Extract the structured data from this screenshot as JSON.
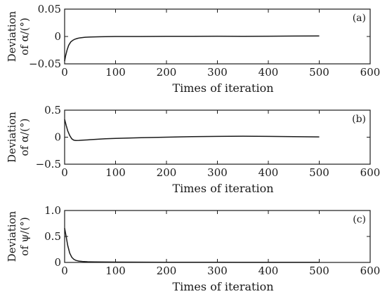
{
  "chart_data": [
    {
      "type": "line",
      "panel_label": "(a)",
      "xlabel": "Times of iteration",
      "ylabel_line1": "Deviation",
      "ylabel_line2": "of α/(°)",
      "xlim": [
        0,
        600
      ],
      "ylim": [
        -0.05,
        0.05
      ],
      "xticks": [
        "0",
        "100",
        "200",
        "300",
        "400",
        "500",
        "600"
      ],
      "yticks": [
        "0.05",
        "0",
        "−0.05"
      ],
      "ytick_values": [
        0.05,
        0,
        -0.05
      ],
      "grid": false,
      "series": [
        {
          "x": [
            0,
            2,
            5,
            8,
            12,
            16,
            20,
            25,
            30,
            40,
            50,
            70,
            100,
            150,
            200,
            250,
            300,
            350,
            400,
            450,
            500
          ],
          "y": [
            -0.045,
            -0.035,
            -0.024,
            -0.016,
            -0.01,
            -0.007,
            -0.005,
            -0.0035,
            -0.0025,
            -0.0015,
            -0.001,
            -0.0005,
            0,
            0,
            0.0003,
            0.0003,
            0.0005,
            0.0003,
            0.0005,
            0.0008,
            0.001
          ]
        }
      ]
    },
    {
      "type": "line",
      "panel_label": "(b)",
      "xlabel": "Times of iteration",
      "ylabel_line1": "Deviation",
      "ylabel_line2": "of α/(°)",
      "xlim": [
        0,
        600
      ],
      "ylim": [
        -0.5,
        0.5
      ],
      "xticks": [
        "0",
        "100",
        "200",
        "300",
        "400",
        "500",
        "600"
      ],
      "yticks": [
        "0.5",
        "0",
        "−0.5"
      ],
      "ytick_values": [
        0.5,
        0,
        -0.5
      ],
      "grid": false,
      "series": [
        {
          "x": [
            0,
            3,
            6,
            10,
            14,
            18,
            22,
            28,
            35,
            45,
            60,
            80,
            100,
            150,
            200,
            250,
            300,
            350,
            400,
            450,
            500
          ],
          "y": [
            0.33,
            0.22,
            0.12,
            0.03,
            -0.03,
            -0.055,
            -0.062,
            -0.06,
            -0.055,
            -0.05,
            -0.04,
            -0.03,
            -0.022,
            -0.01,
            0,
            0.01,
            0.015,
            0.018,
            0.015,
            0.01,
            0.005
          ]
        }
      ]
    },
    {
      "type": "line",
      "panel_label": "(c)",
      "xlabel": "Times of iteration",
      "ylabel_line1": "Deviation",
      "ylabel_line2": "of ψ/(°)",
      "xlim": [
        0,
        600
      ],
      "ylim": [
        0,
        1.0
      ],
      "xticks": [
        "0",
        "100",
        "200",
        "300",
        "400",
        "500",
        "600"
      ],
      "yticks": [
        "1.0",
        "0.5",
        "0"
      ],
      "ytick_values": [
        1.0,
        0.5,
        0
      ],
      "grid": false,
      "series": [
        {
          "x": [
            0,
            3,
            6,
            10,
            14,
            18,
            22,
            28,
            35,
            45,
            60,
            80,
            100,
            150,
            200,
            250,
            300,
            350,
            400,
            450,
            500
          ],
          "y": [
            0.66,
            0.5,
            0.33,
            0.18,
            0.1,
            0.06,
            0.04,
            0.025,
            0.018,
            0.013,
            0.01,
            0.008,
            0.007,
            0.005,
            0.004,
            0.003,
            0.003,
            0.002,
            0.002,
            0.002,
            0.002
          ]
        }
      ]
    }
  ]
}
